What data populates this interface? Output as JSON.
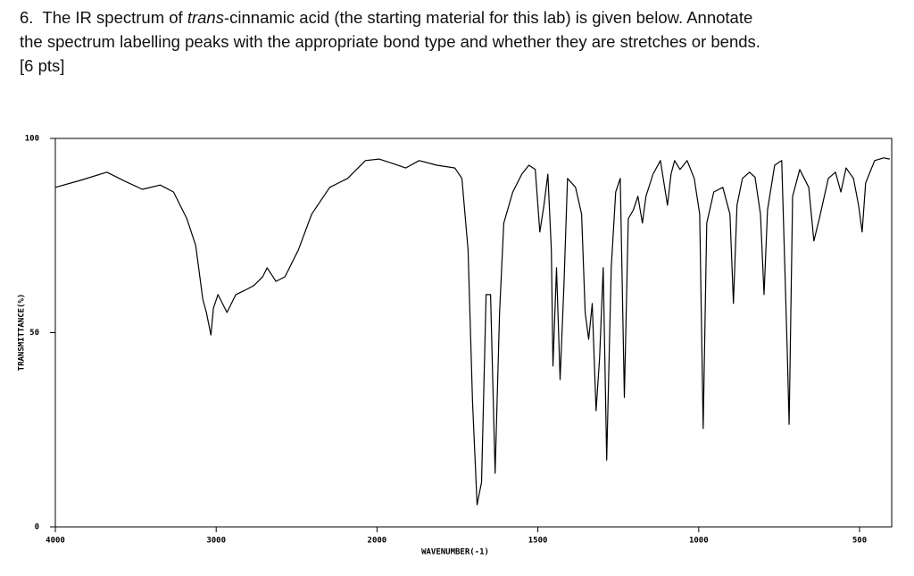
{
  "question": {
    "number": "6.",
    "text_before": "The IR spectrum of",
    "italic": "trans",
    "text_after": "-cinnamic acid (the starting material for this lab) is given below.  Annotate",
    "line2": "the spectrum labelling peaks with the appropriate bond type and whether they are stretches or bends.",
    "points": "[6 pts]"
  },
  "chart_data": {
    "type": "line",
    "x_label": "WAVENUMBER(-1)",
    "y_label": "TRANSMITTANCE(%)",
    "xlim": [
      4000,
      400
    ],
    "xticks": [
      4000,
      3000,
      2000,
      1500,
      1000,
      500
    ],
    "ylim": [
      0,
      100
    ],
    "yticks": [
      0,
      50,
      100
    ],
    "color": "#000000",
    "x": [
      4000,
      3845,
      3680,
      3569,
      3459,
      3348,
      3265,
      3182,
      3127,
      3083,
      3061,
      3033,
      3017,
      2989,
      2933,
      2878,
      2822,
      2767,
      2711,
      2683,
      2628,
      2572,
      2489,
      2406,
      2294,
      2183,
      2072,
      1994,
      1953,
      1911,
      1869,
      1814,
      1758,
      1736,
      1717,
      1703,
      1689,
      1675,
      1661,
      1647,
      1633,
      1619,
      1606,
      1578,
      1550,
      1528,
      1508,
      1494,
      1481,
      1469,
      1458,
      1453,
      1442,
      1431,
      1419,
      1408,
      1383,
      1364,
      1353,
      1342,
      1331,
      1319,
      1308,
      1297,
      1286,
      1272,
      1258,
      1244,
      1231,
      1219,
      1203,
      1189,
      1175,
      1164,
      1142,
      1119,
      1097,
      1086,
      1075,
      1058,
      1036,
      1014,
      997,
      986,
      975,
      953,
      925,
      903,
      892,
      881,
      864,
      842,
      825,
      808,
      797,
      786,
      764,
      742,
      725,
      719,
      708,
      686,
      658,
      642,
      625,
      597,
      575,
      558,
      542,
      519,
      503,
      492,
      481,
      453,
      425,
      406
    ],
    "values": [
      87.4,
      89.2,
      91.3,
      89,
      86.9,
      88,
      86.2,
      79.3,
      72.4,
      58.6,
      55.2,
      49.4,
      56.3,
      59.8,
      55.2,
      59.8,
      60.9,
      62.1,
      64.4,
      66.7,
      63.2,
      64.4,
      71.3,
      80.5,
      87.4,
      89.7,
      94.3,
      94.7,
      93.6,
      92.4,
      94.3,
      93.1,
      92.4,
      89.7,
      71.3,
      32.2,
      5.7,
      11.5,
      59.8,
      59.8,
      13.8,
      55.2,
      78.2,
      86.2,
      90.8,
      93.1,
      92,
      75.9,
      82.8,
      90.8,
      71.3,
      41.4,
      66.7,
      37.9,
      62.1,
      89.7,
      87.4,
      80.5,
      55.2,
      48.3,
      57.5,
      29.9,
      43.7,
      66.7,
      17.2,
      66.7,
      86.2,
      89.7,
      33.3,
      79.3,
      81.6,
      85.1,
      78.2,
      85.1,
      90.8,
      94.3,
      82.8,
      90.8,
      94.3,
      92,
      94.3,
      89.7,
      80.5,
      25.3,
      78.2,
      86.2,
      87.4,
      80.5,
      57.5,
      82.8,
      89.7,
      91.3,
      90,
      80.5,
      59.8,
      81.6,
      93.1,
      94.3,
      46,
      26.4,
      85.1,
      92,
      87.4,
      73.6,
      79.3,
      89.7,
      91.3,
      86.2,
      92.4,
      89.7,
      82.8,
      75.9,
      88.5,
      94.3,
      95,
      94.7
    ]
  }
}
